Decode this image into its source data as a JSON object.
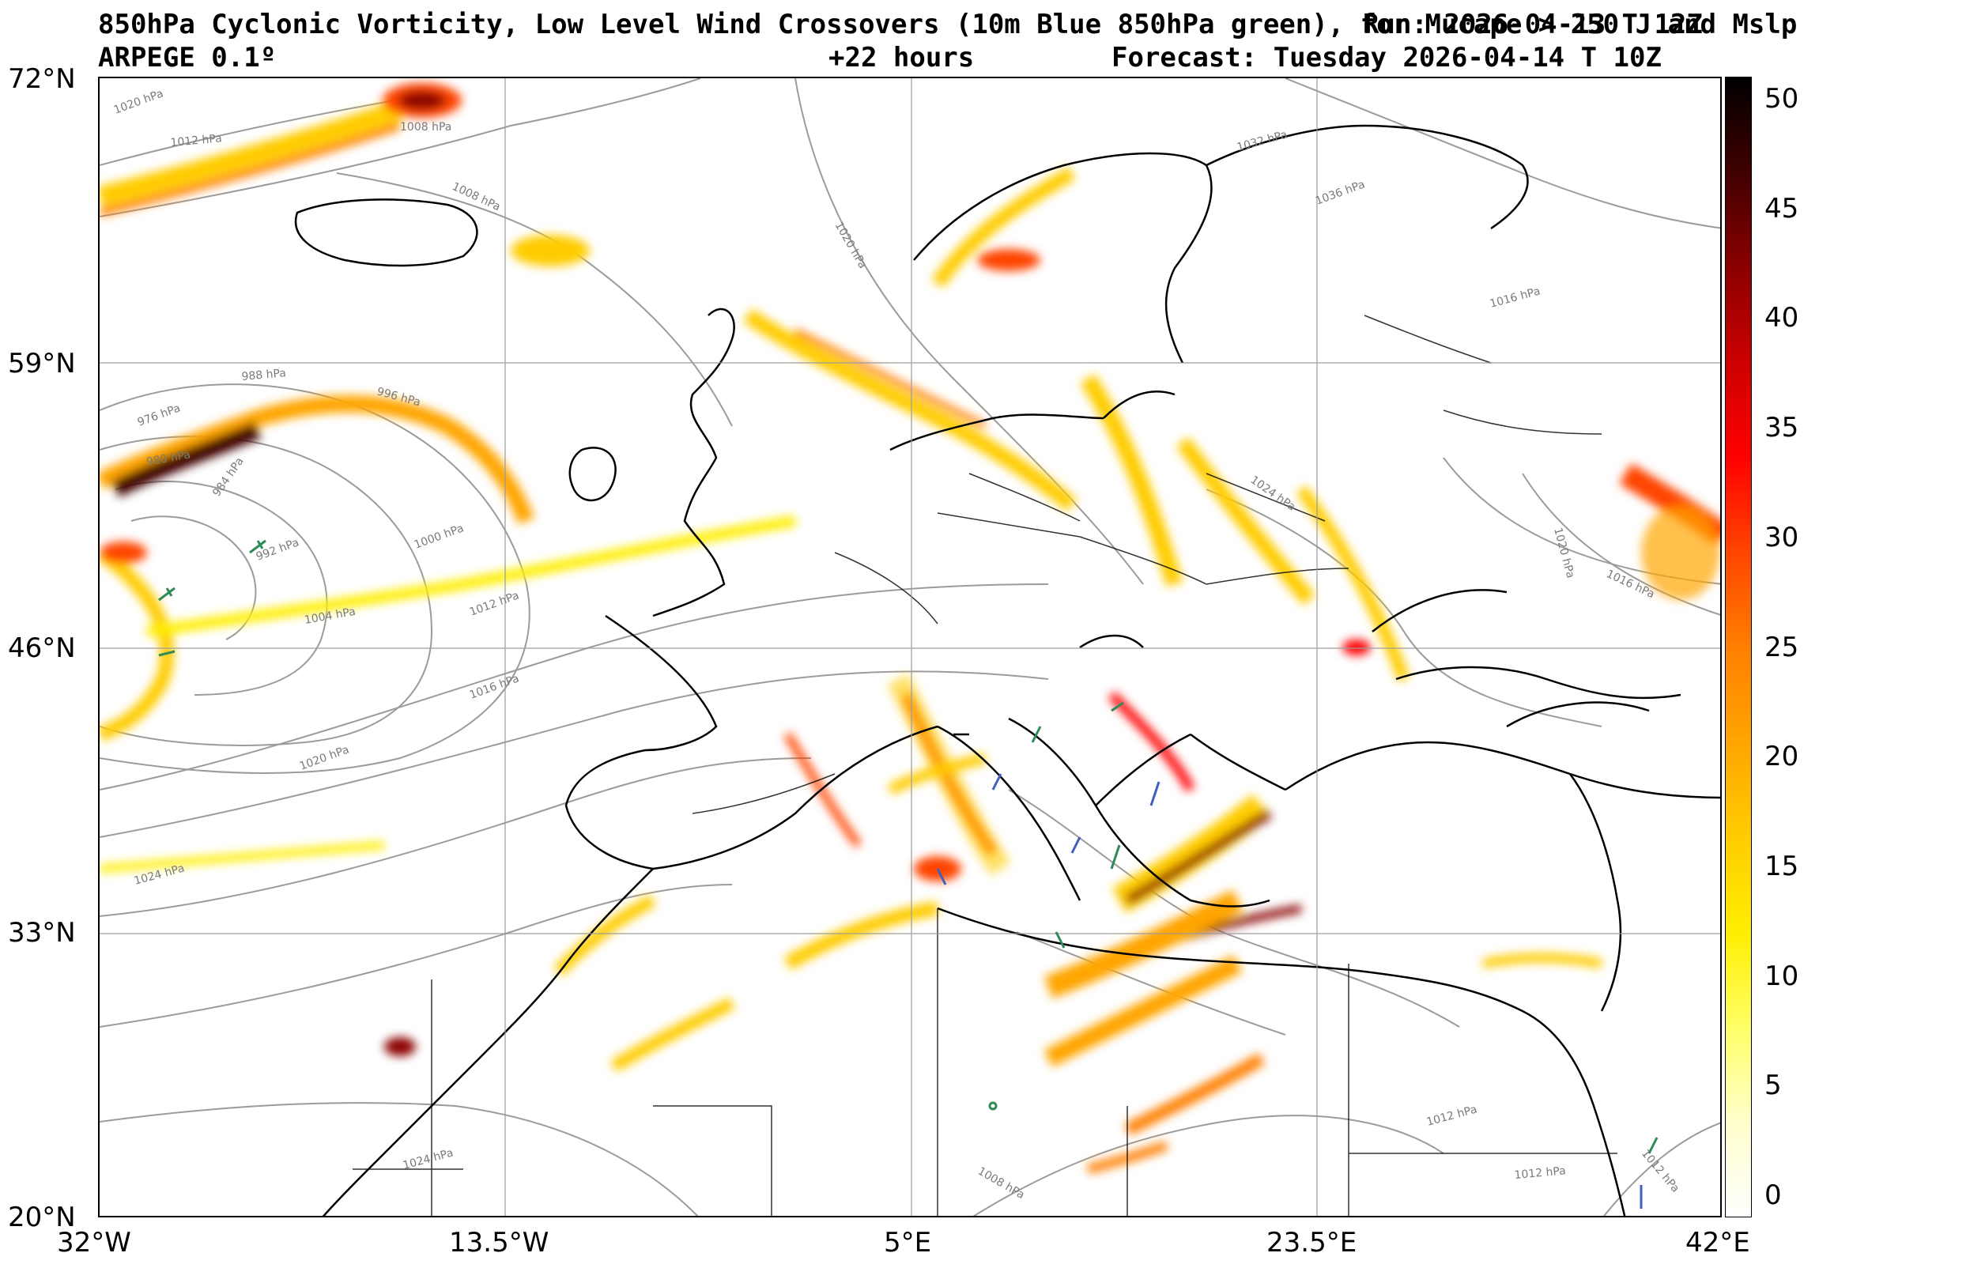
{
  "title": {
    "line1": "850hPa Cyclonic Vorticity, Low Level Wind Crossovers (10m Blue 850hPa green), for Mucape > 250 J and Mslp",
    "model": "ARPEGE 0.1º",
    "lead": "+22 hours",
    "forecast": "Forecast: Tuesday 2026-04-14 T 10Z",
    "run": "Run: 2026-04-13 T 12Z"
  },
  "axes": {
    "lat_labels": [
      "72°N",
      "59°N",
      "46°N",
      "33°N",
      "20°N"
    ],
    "lon_labels": [
      "32°W",
      "13.5°W",
      "5°E",
      "23.5°E",
      "42°E"
    ]
  },
  "colorbar": {
    "ticks": [
      "50",
      "45",
      "40",
      "35",
      "30",
      "25",
      "20",
      "15",
      "10",
      "5",
      "0"
    ],
    "colors": [
      "#ffffff",
      "#ffffcc",
      "#ffff66",
      "#ffee00",
      "#ffcc00",
      "#ffa500",
      "#ff7f00",
      "#ff4500",
      "#ff0000",
      "#cc0000",
      "#8b0000",
      "#400000",
      "#000000"
    ]
  },
  "isobars": {
    "labels": [
      "1020 hPa",
      "1012 hPa",
      "1008 hPa",
      "1008 hPa",
      "1020 hPa",
      "996 hPa",
      "988 hPa",
      "976 hPa",
      "980 hPa",
      "984 hPa",
      "992 hPa",
      "1000 hPa",
      "1004 hPa",
      "1012 hPa",
      "1016 hPa",
      "1020 hPa",
      "1024 hPa",
      "1032 hPa",
      "1036 hPa",
      "1024 hPa",
      "1020 hPa",
      "1016 hPa",
      "1016 hPa",
      "1012 hPa",
      "1012 hPa",
      "1008 hPa",
      "1012 hPa",
      "1024 hPa"
    ]
  }
}
